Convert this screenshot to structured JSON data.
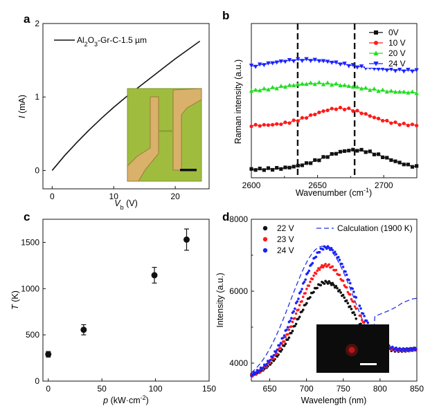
{
  "colors": {
    "axis": "#111111",
    "black": "#111111",
    "red": "#ff1a1a",
    "green": "#22dd22",
    "blue": "#1a22ff",
    "calc": "#2233dd",
    "inset_chip": "#9fbc3f",
    "inset_glow": "#cc1818"
  },
  "chart_data": [
    {
      "panel": "a",
      "type": "line",
      "xlabel": "V",
      "xlabel_sub": "b",
      "xlabel_unit": " (V)",
      "ylabel": "I",
      "ylabel_unit": " (mA)",
      "xlim": [
        -1.5,
        25.5
      ],
      "ylim": [
        -0.25,
        2.0
      ],
      "xticks": [
        0,
        10,
        20
      ],
      "yticks": [
        0,
        1,
        2
      ],
      "series": [
        {
          "name": "Al2O3-Gr-C-1.5 µm",
          "x": [
            0,
            2,
            4,
            6,
            8,
            10,
            12,
            14,
            16,
            18,
            20,
            22,
            24
          ],
          "y": [
            0.0,
            0.2,
            0.38,
            0.55,
            0.71,
            0.86,
            1.0,
            1.13,
            1.26,
            1.39,
            1.52,
            1.64,
            1.76
          ]
        }
      ],
      "legend_parts": [
        "Al",
        "2",
        "O",
        "3",
        "-Gr-C-1.5 µm"
      ],
      "inset": "optical micrograph of device with scale bar"
    },
    {
      "panel": "b",
      "type": "line",
      "xlabel": "Wavenumber (cm",
      "xlabel_sup": "-1",
      "xlabel_end": ")",
      "ylabel": "Raman intensity (a.u.)",
      "xlim": [
        2600,
        2725
      ],
      "xticks": [
        2600,
        2650,
        2700
      ],
      "dashed_lines_x": [
        2635,
        2678
      ],
      "series": [
        {
          "name": "0V",
          "color_key": "black",
          "marker": "square",
          "peak": 2678,
          "base": 0.0,
          "amp": 0.62,
          "width": 33
        },
        {
          "name": "10 V",
          "color_key": "red",
          "marker": "circle",
          "peak": 2667,
          "base": 1.4,
          "amp": 0.55,
          "width": 30
        },
        {
          "name": "20 V",
          "color_key": "green",
          "marker": "triangle-up",
          "peak": 2650,
          "base": 2.45,
          "amp": 0.3,
          "width": 40
        },
        {
          "name": "24 V",
          "color_key": "blue",
          "marker": "triangle-down",
          "peak": 2640,
          "base": 3.15,
          "amp": 0.35,
          "width": 42
        }
      ]
    },
    {
      "panel": "c",
      "type": "scatter",
      "xlabel": "p",
      "xlabel_unit": " (kW·cm",
      "xlabel_sup": "-2",
      "xlabel_end": ")",
      "ylabel": "T",
      "ylabel_unit": " (K)",
      "xlim": [
        -5,
        150
      ],
      "ylim": [
        0,
        1750
      ],
      "xticks": [
        0,
        50,
        100,
        150
      ],
      "yticks": [
        0,
        500,
        1000,
        1500
      ],
      "points": [
        {
          "x": 0,
          "y": 290,
          "err": 30
        },
        {
          "x": 33,
          "y": 555,
          "err": 55
        },
        {
          "x": 99,
          "y": 1145,
          "err": 85
        },
        {
          "x": 129,
          "y": 1530,
          "err": 115
        }
      ]
    },
    {
      "panel": "d",
      "type": "scatter",
      "xlabel": "Wavelength (nm)",
      "ylabel": "Intensity (a.u.)",
      "xlim": [
        625,
        850
      ],
      "ylim": [
        3500,
        8000
      ],
      "xticks": [
        650,
        700,
        750,
        800,
        850
      ],
      "yticks": [
        4000,
        6000,
        8000
      ],
      "series": [
        {
          "name": "22 V",
          "color_key": "black",
          "peak_y": 6250
        },
        {
          "name": "23 V",
          "color_key": "red",
          "peak_y": 6720
        },
        {
          "name": "24 V",
          "color_key": "blue",
          "peak_y": 7220
        }
      ],
      "calculation": {
        "name": "Calculation (1900 K)",
        "color_key": "calc"
      },
      "inset": "emission image with scale bar"
    }
  ]
}
